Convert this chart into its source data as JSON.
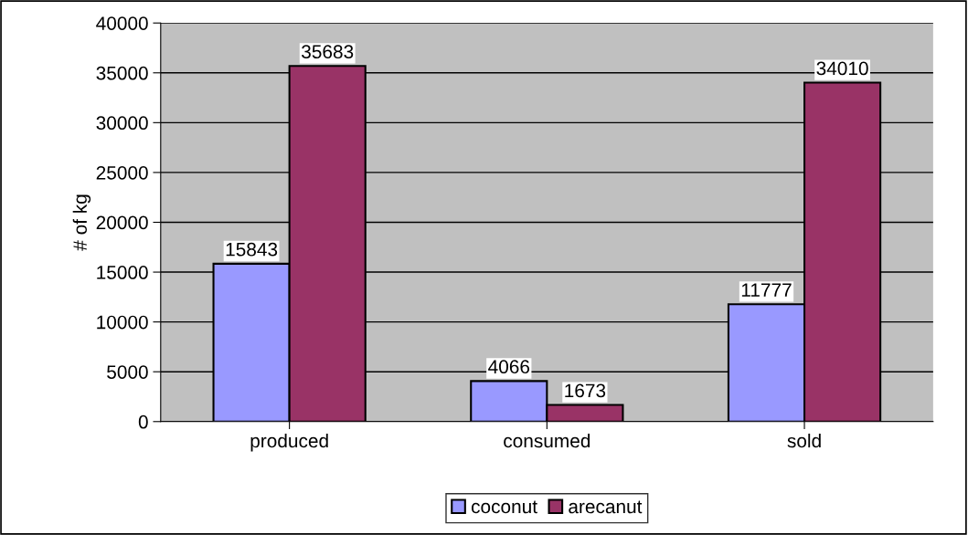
{
  "chart_data": {
    "type": "bar",
    "ylabel": "# of kg",
    "categories": [
      "produced",
      "consumed",
      "sold"
    ],
    "series": [
      {
        "name": "coconut",
        "color": "#9999ff",
        "values": [
          15843,
          4066,
          11777
        ]
      },
      {
        "name": "arecanut",
        "color": "#993366",
        "values": [
          35683,
          1673,
          34010
        ]
      }
    ],
    "ylim": [
      0,
      40000
    ],
    "yticks": [
      0,
      5000,
      10000,
      15000,
      20000,
      25000,
      30000,
      35000,
      40000
    ],
    "grid": "y",
    "legend": "bottom",
    "data_labels": true
  }
}
